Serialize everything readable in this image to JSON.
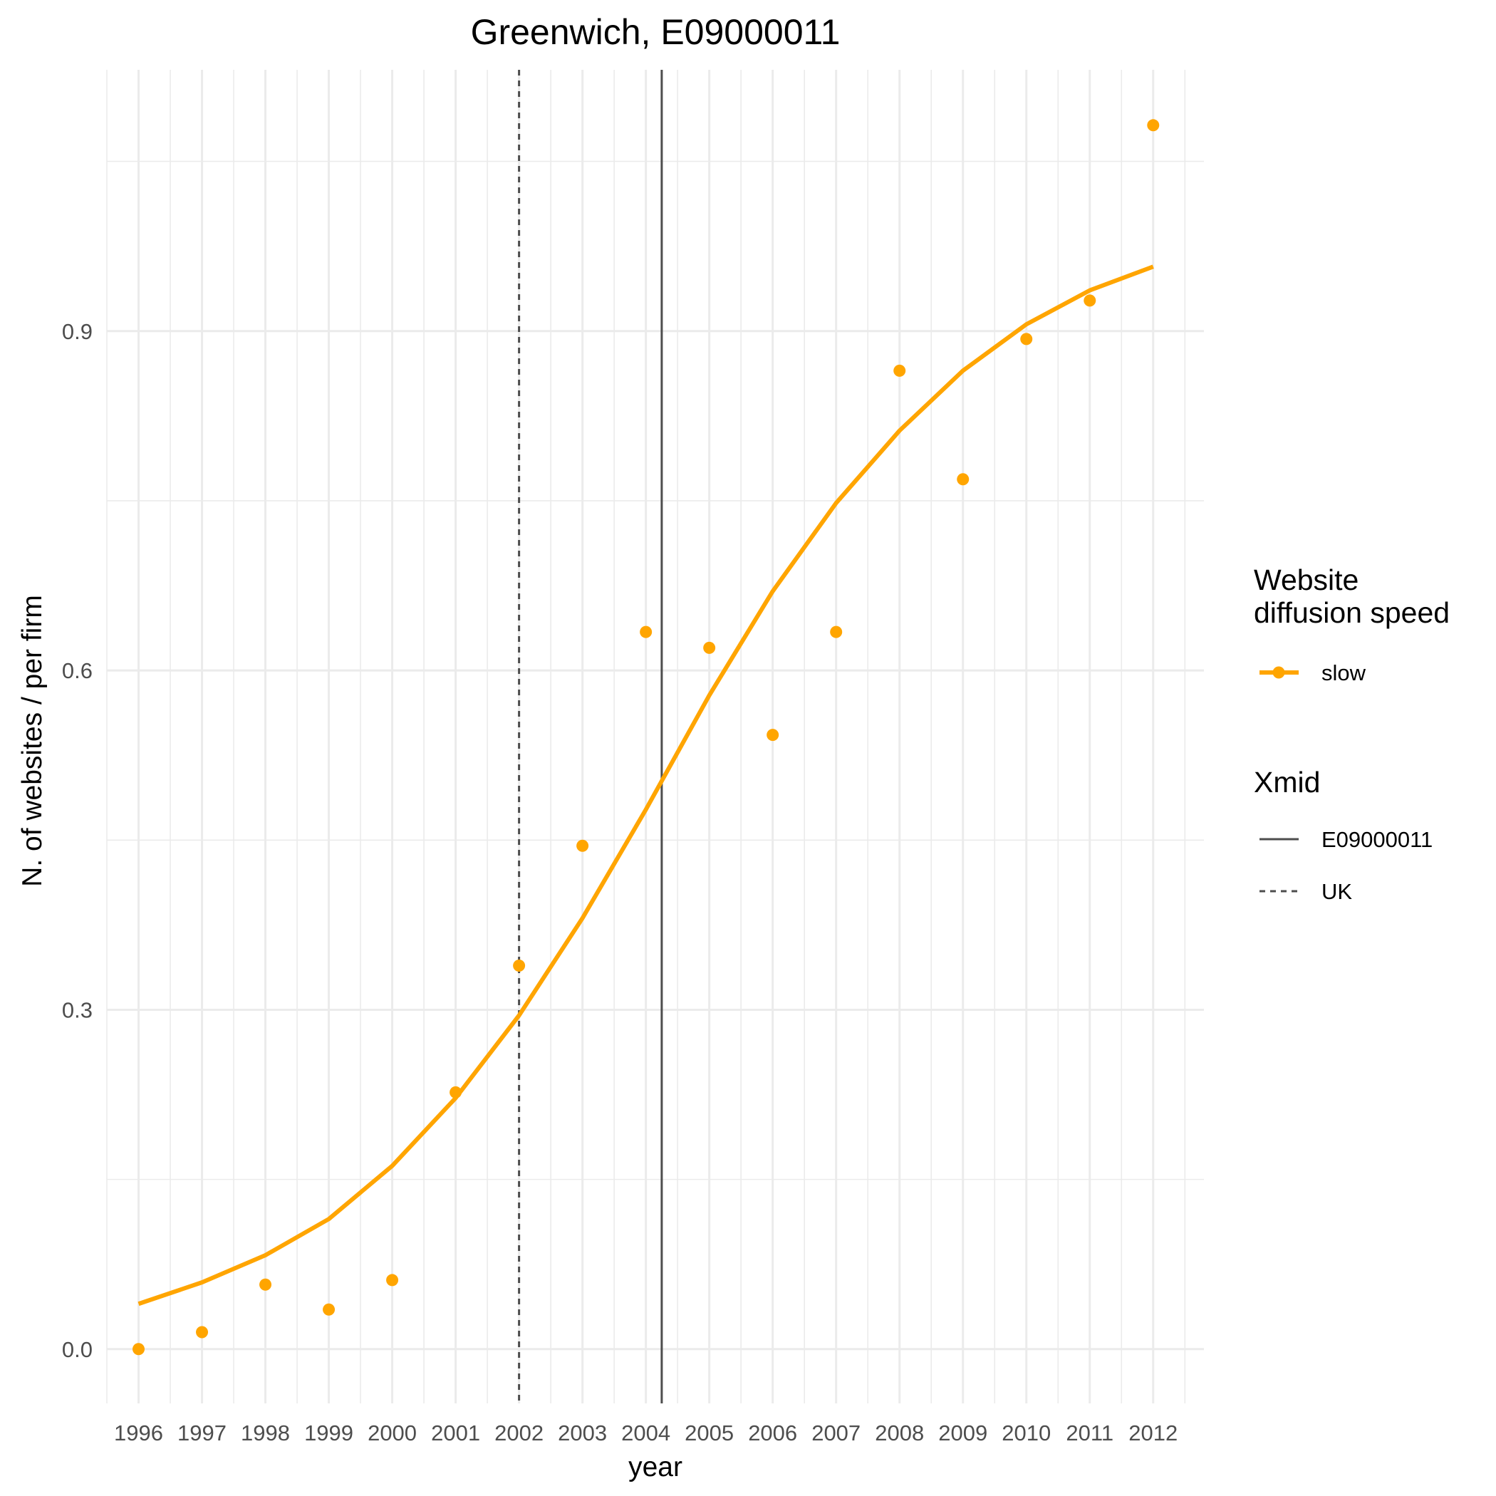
{
  "chart_data": {
    "type": "scatter",
    "title": "Greenwich, E09000011",
    "xlabel": "year",
    "ylabel": "N. of websites / per firm",
    "x_ticks": [
      "1996",
      "1997",
      "1998",
      "1999",
      "2000",
      "2001",
      "2002",
      "2003",
      "2004",
      "2005",
      "2006",
      "2007",
      "2008",
      "2009",
      "2010",
      "2011",
      "2012"
    ],
    "y_ticks": [
      "0.0",
      "0.3",
      "0.6",
      "0.9"
    ],
    "xlim": [
      1995.5,
      2012.8
    ],
    "ylim": [
      -0.048,
      1.131
    ],
    "grid": true,
    "legend_position": "right",
    "series": [
      {
        "name": "slow",
        "color": "#FFA500",
        "kind": "points",
        "x": [
          1996,
          1997,
          1998,
          1999,
          2000,
          2001,
          2002,
          2003,
          2004,
          2005,
          2006,
          2007,
          2008,
          2009,
          2010,
          2011,
          2012
        ],
        "y": [
          0.0,
          0.015,
          0.057,
          0.035,
          0.061,
          0.227,
          0.339,
          0.445,
          0.634,
          0.62,
          0.543,
          0.634,
          0.865,
          0.769,
          0.893,
          0.927,
          1.082
        ]
      },
      {
        "name": "slow",
        "color": "#FFA500",
        "kind": "fitted-line",
        "x": [
          1996,
          1997,
          1998,
          1999,
          2000,
          2001,
          2002,
          2003,
          2004,
          2005,
          2006,
          2007,
          2008,
          2009,
          2010,
          2011,
          2012
        ],
        "y": [
          0.04,
          0.059,
          0.083,
          0.115,
          0.162,
          0.222,
          0.295,
          0.381,
          0.477,
          0.578,
          0.67,
          0.748,
          0.812,
          0.865,
          0.906,
          0.936,
          0.957
        ]
      }
    ],
    "vlines": [
      {
        "label": "E09000011",
        "x": 2004.25,
        "style": "solid",
        "color": "#4d4d4d"
      },
      {
        "label": "UK",
        "x": 2002.0,
        "style": "dashed",
        "color": "#4d4d4d"
      }
    ],
    "legends": [
      {
        "title": [
          "Website",
          "diffusion speed"
        ],
        "entries": [
          {
            "label": "slow",
            "type": "point-line",
            "color": "#FFA500"
          }
        ]
      },
      {
        "title": [
          "Xmid"
        ],
        "entries": [
          {
            "label": "E09000011",
            "type": "solid"
          },
          {
            "label": "UK",
            "type": "dashed"
          }
        ]
      }
    ]
  }
}
